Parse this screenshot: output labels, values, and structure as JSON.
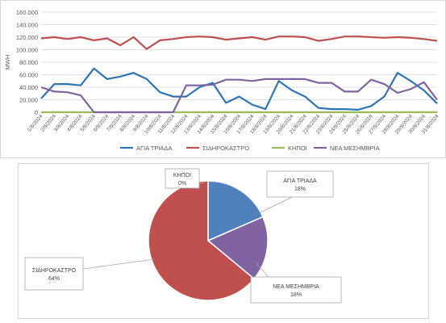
{
  "chart_data": [
    {
      "type": "line",
      "ylabel": "MWH",
      "ylim": [
        0,
        160000
      ],
      "yticks": [
        0,
        20000,
        40000,
        60000,
        80000,
        100000,
        120000,
        140000,
        160000
      ],
      "ytick_labels": [
        "0",
        "20.000",
        "40.000",
        "60.000",
        "80.000",
        "100.000",
        "120.000",
        "140.000",
        "160.000"
      ],
      "grid": true,
      "legend": "bottom",
      "x": [
        "1/8/2024",
        "2/8/2024",
        "3/8/2024",
        "4/8/2024",
        "5/8/2024",
        "6/8/2024",
        "7/8/2024",
        "8/8/2024",
        "9/8/2024",
        "10/8/2024",
        "11/8/2024",
        "12/8/2024",
        "13/8/2024",
        "14/8/2024",
        "15/8/2024",
        "16/8/2024",
        "17/8/2024",
        "18/8/2024",
        "19/8/2024",
        "20/8/2024",
        "21/8/2024",
        "22/8/2024",
        "23/8/2024",
        "24/8/2024",
        "25/8/2024",
        "26/8/2024",
        "27/8/2024",
        "28/8/2024",
        "29/8/2024",
        "30/8/2024",
        "31/8/2024"
      ],
      "series": [
        {
          "name": "ΑΓΙΑ ΤΡΙΑΔΑ",
          "color": "#2e75b6",
          "values": [
            22000,
            45000,
            45000,
            43000,
            70000,
            53000,
            57000,
            63000,
            53000,
            32000,
            25000,
            25000,
            40000,
            47000,
            15000,
            25000,
            12000,
            5000,
            50000,
            35000,
            25000,
            7000,
            5000,
            5000,
            4000,
            10000,
            25000,
            63000,
            50000,
            35000,
            14000
          ]
        },
        {
          "name": "ΣΙΔΗΡΟΚΑΣΤΡΟ",
          "color": "#c0504d",
          "values": [
            118000,
            120000,
            117000,
            120000,
            115000,
            118000,
            107000,
            120000,
            101000,
            115000,
            117000,
            120000,
            121000,
            120000,
            116000,
            118000,
            120000,
            116000,
            121000,
            121000,
            120000,
            114000,
            117000,
            121000,
            121000,
            120000,
            119000,
            120000,
            119000,
            117000,
            114000
          ]
        },
        {
          "name": "ΚΗΠΟΙ",
          "color": "#9bbb59",
          "values": [
            0,
            0,
            0,
            0,
            0,
            0,
            0,
            0,
            0,
            0,
            0,
            0,
            0,
            0,
            0,
            0,
            0,
            0,
            0,
            0,
            0,
            0,
            0,
            0,
            0,
            0,
            0,
            0,
            0,
            0,
            0
          ]
        },
        {
          "name": "ΝΕΑ ΜΕΣΗΜΒΡΙΑ",
          "color": "#8064a2",
          "values": [
            40000,
            33000,
            32000,
            27000,
            0,
            0,
            0,
            0,
            0,
            0,
            0,
            43000,
            43000,
            44000,
            52000,
            52000,
            50000,
            53000,
            53000,
            53000,
            53000,
            47000,
            47000,
            33000,
            33000,
            52000,
            45000,
            31000,
            37000,
            48000,
            20000
          ]
        }
      ]
    },
    {
      "type": "pie",
      "slices": [
        {
          "name": "ΑΓΙΑ ΤΡΙΑΔΑ",
          "pct_label": "18%",
          "value": 18.5,
          "color": "#4f81bd"
        },
        {
          "name": "ΝΕΑ ΜΕΣΗΜΒΡΙΑ",
          "pct_label": "18%",
          "value": 17.5,
          "color": "#8064a2"
        },
        {
          "name": "ΣΙΔΗΡΟΚΑΣΤΡΟ",
          "pct_label": "64%",
          "value": 64,
          "color": "#c0504d"
        },
        {
          "name": "ΚΗΠΟΙ",
          "pct_label": "0%",
          "value": 0.0,
          "color": "#9bbb59"
        }
      ]
    }
  ]
}
